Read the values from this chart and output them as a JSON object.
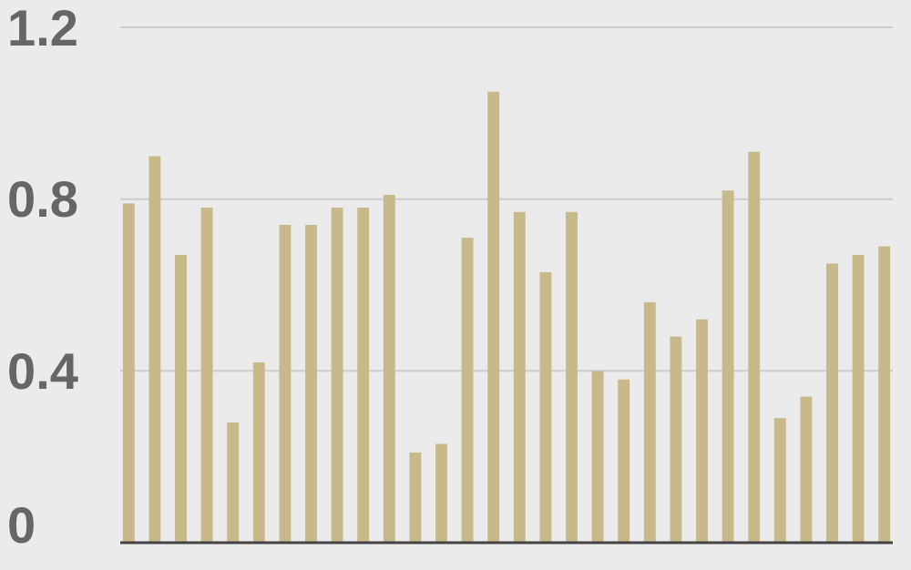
{
  "chart_data": {
    "type": "bar",
    "categories": [
      null,
      null,
      null,
      null,
      null,
      null,
      null,
      null,
      null,
      null,
      null,
      null,
      null,
      null,
      null,
      null,
      null,
      null,
      null,
      null,
      null,
      null,
      null,
      null,
      null,
      null,
      null,
      null,
      null,
      null
    ],
    "values": [
      0.79,
      0.9,
      0.67,
      0.78,
      0.28,
      0.42,
      0.74,
      0.74,
      0.78,
      0.78,
      0.81,
      0.21,
      0.23,
      0.71,
      1.05,
      0.77,
      0.63,
      0.77,
      0.4,
      0.38,
      0.56,
      0.48,
      0.52,
      0.82,
      0.91,
      0.29,
      0.34,
      0.65,
      0.67,
      0.69
    ],
    "color": "#c8b98a",
    "ylim": [
      0,
      1.2
    ],
    "yticks": [
      0,
      0.4,
      0.8,
      1.2
    ],
    "grid": "y"
  }
}
